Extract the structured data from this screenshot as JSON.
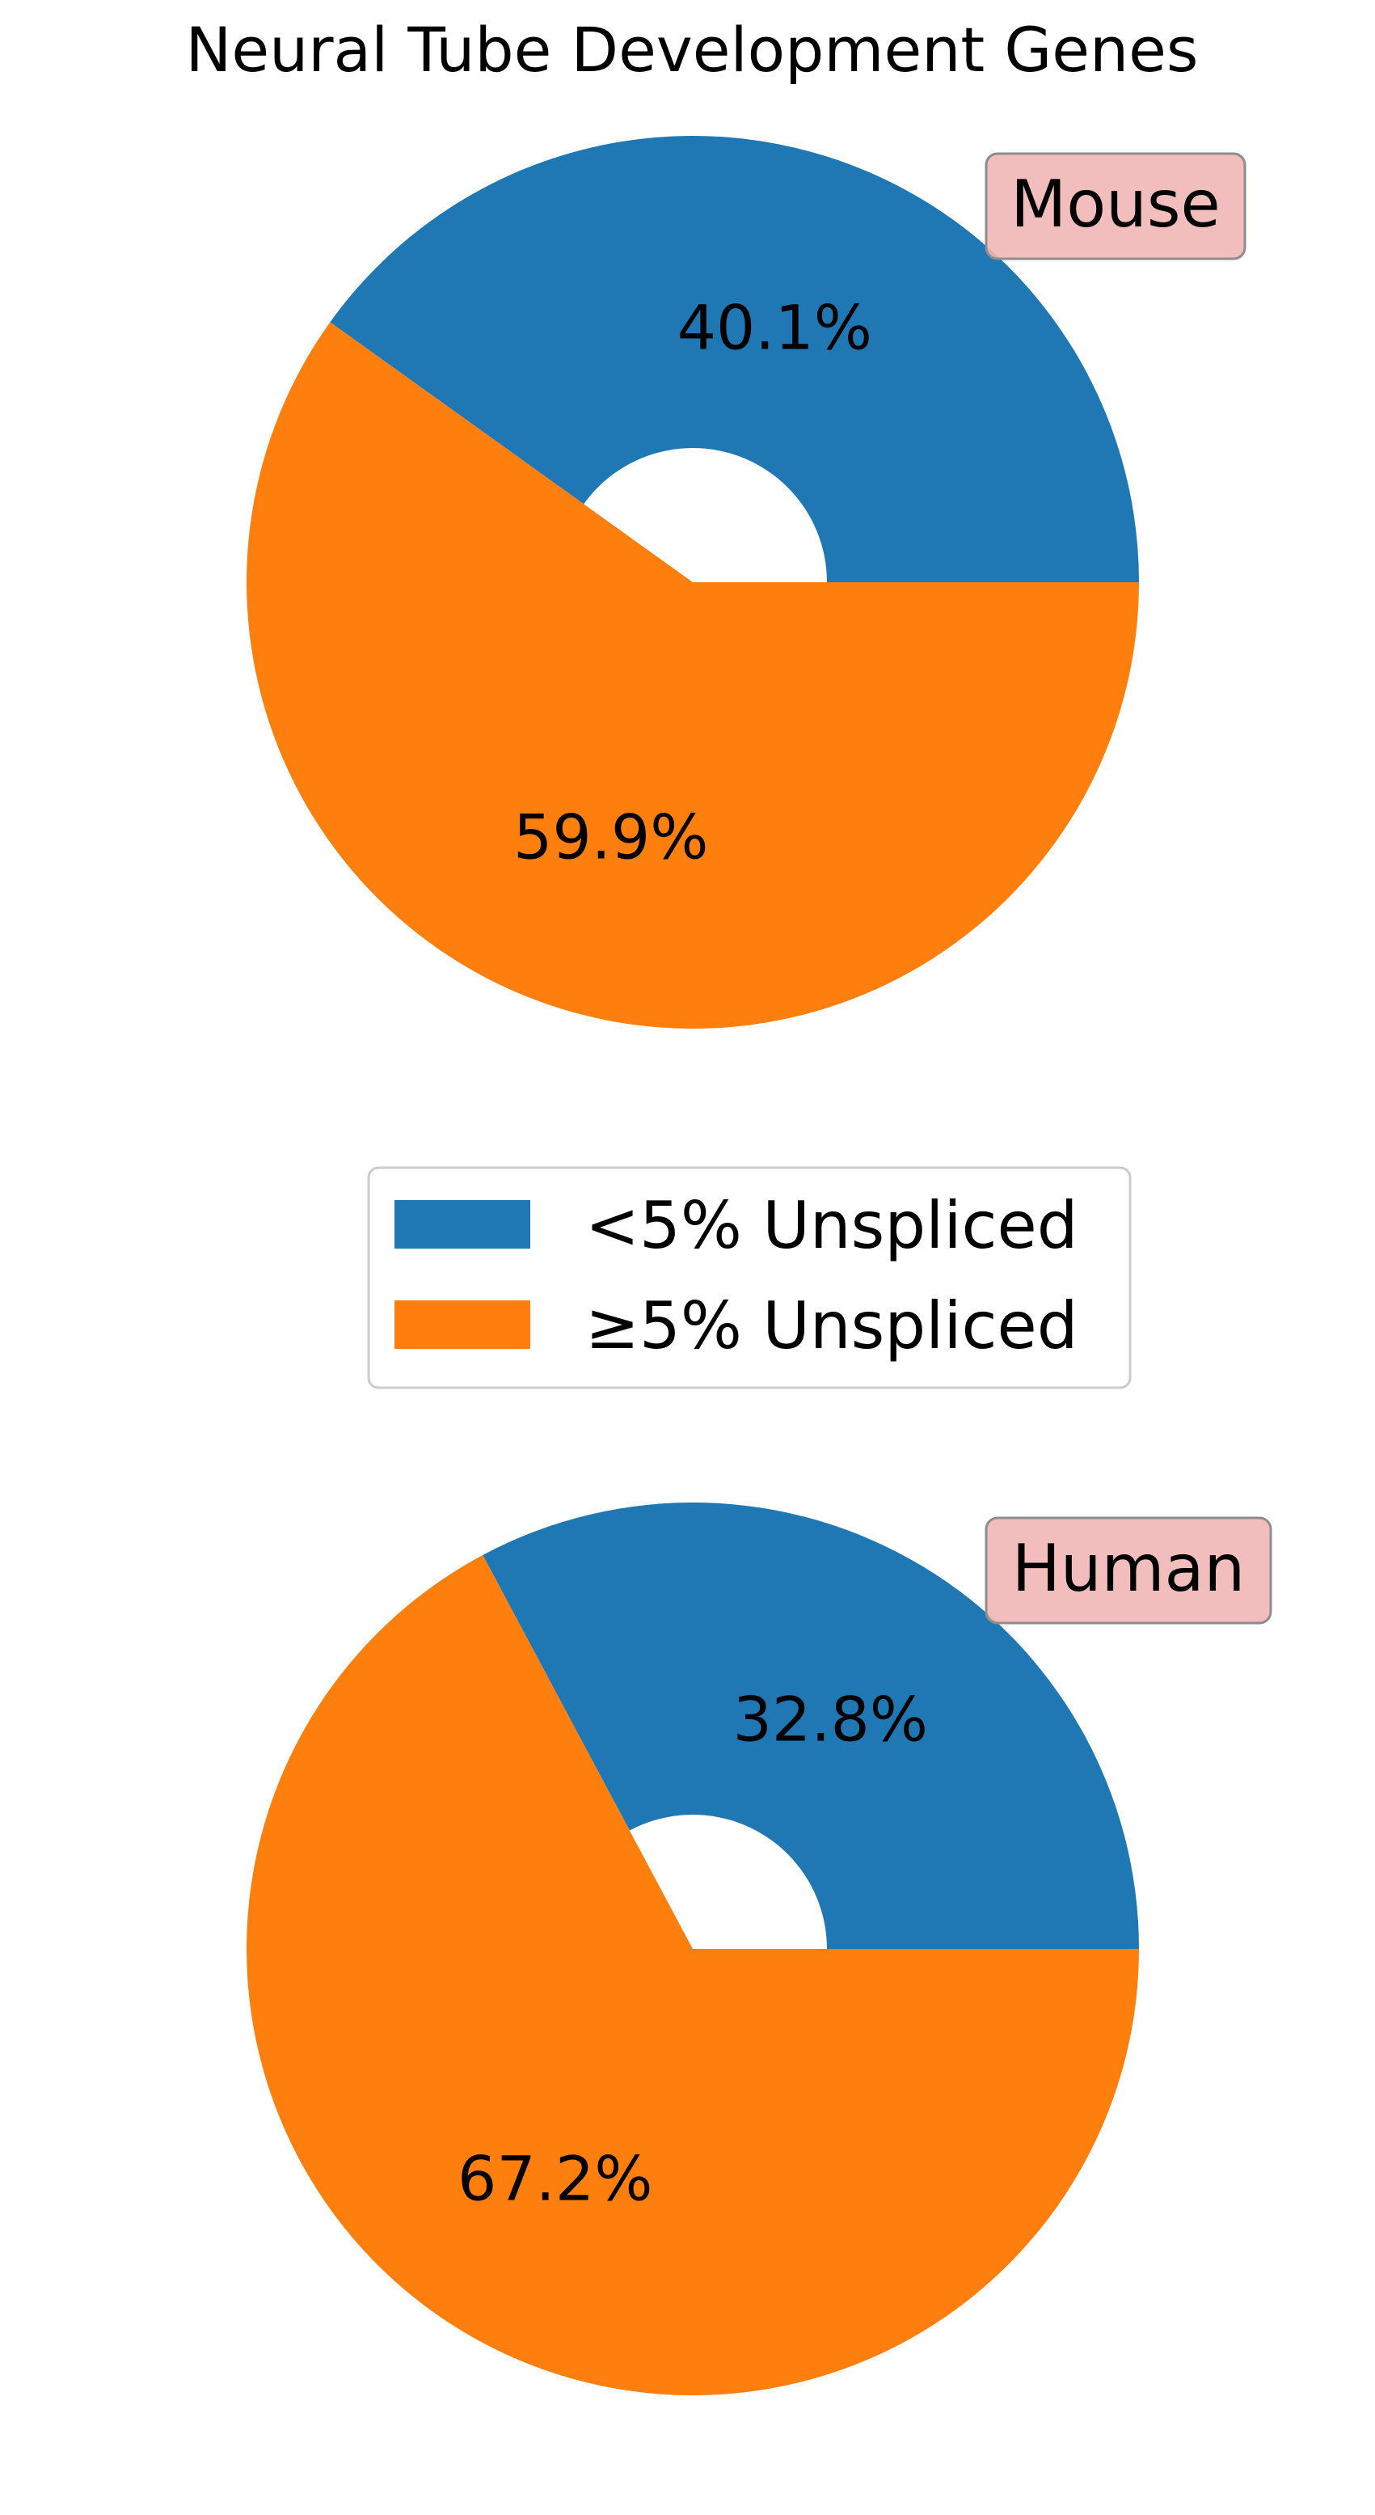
{
  "figure": {
    "title": "Neural Tube Development Genes"
  },
  "legend": {
    "placement": "center",
    "items": [
      {
        "label": "<5% Unspliced",
        "color": "#1f77b4"
      },
      {
        "label": "≥5% Unspliced",
        "color": "#ff7f0e"
      }
    ]
  },
  "chart_data": [
    {
      "type": "pie",
      "donut": true,
      "title": "Neural Tube Development Genes",
      "panel_label": "Mouse",
      "categories": [
        "<5% Unspliced",
        "≥5% Unspliced"
      ],
      "values": [
        40.1,
        59.9
      ],
      "labels": [
        "40.1%",
        "59.9%"
      ],
      "colors": [
        "#1f77b4",
        "#ff7f0e"
      ],
      "start_angle_deg": 0,
      "direction": "counterclockwise"
    },
    {
      "type": "pie",
      "donut": true,
      "panel_label": "Human",
      "categories": [
        "<5% Unspliced",
        "≥5% Unspliced"
      ],
      "values": [
        32.8,
        67.2
      ],
      "labels": [
        "32.8%",
        "67.2%"
      ],
      "colors": [
        "#1f77b4",
        "#ff7f0e"
      ],
      "start_angle_deg": 0,
      "direction": "counterclockwise"
    }
  ]
}
